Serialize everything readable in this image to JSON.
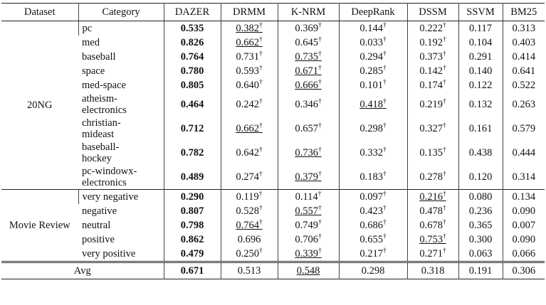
{
  "headers": [
    "Dataset",
    "Category",
    "DAZER",
    "DRMM",
    "K-NRM",
    "DeepRank",
    "DSSM",
    "SSVM",
    "BM25"
  ],
  "groups": [
    {
      "dataset": "20NG",
      "rows": [
        {
          "category": "pc",
          "lines": 1,
          "values": [
            {
              "v": "0.535",
              "b": true
            },
            {
              "v": "0.382",
              "dag": true,
              "u": true
            },
            {
              "v": "0.369",
              "dag": true
            },
            {
              "v": "0.144",
              "dag": true
            },
            {
              "v": "0.222",
              "dag": true
            },
            {
              "v": "0.117"
            },
            {
              "v": "0.313"
            }
          ]
        },
        {
          "category": "med",
          "lines": 1,
          "values": [
            {
              "v": "0.826",
              "b": true
            },
            {
              "v": "0.662",
              "dag": true,
              "u": true
            },
            {
              "v": "0.645",
              "dag": true
            },
            {
              "v": "0.033",
              "dag": true
            },
            {
              "v": "0.192",
              "dag": true
            },
            {
              "v": "0.104"
            },
            {
              "v": "0.403"
            }
          ]
        },
        {
          "category": "baseball",
          "lines": 1,
          "values": [
            {
              "v": "0.764",
              "b": true
            },
            {
              "v": "0.731",
              "dag": true
            },
            {
              "v": "0.735",
              "dag": true,
              "u": true
            },
            {
              "v": "0.294",
              "dag": true
            },
            {
              "v": "0.373",
              "dag": true
            },
            {
              "v": "0.291"
            },
            {
              "v": "0.414"
            }
          ]
        },
        {
          "category": "space",
          "lines": 1,
          "values": [
            {
              "v": "0.780",
              "b": true
            },
            {
              "v": "0.593",
              "dag": true
            },
            {
              "v": "0.671",
              "dag": true,
              "u": true
            },
            {
              "v": "0.285",
              "dag": true
            },
            {
              "v": "0.142",
              "dag": true
            },
            {
              "v": "0.140"
            },
            {
              "v": "0.641"
            }
          ]
        },
        {
          "category": "med-space",
          "lines": 1,
          "values": [
            {
              "v": "0.805",
              "b": true
            },
            {
              "v": "0.640",
              "dag": true
            },
            {
              "v": "0.666",
              "dag": true,
              "u": true
            },
            {
              "v": "0.101",
              "dag": true
            },
            {
              "v": "0.174",
              "dag": true
            },
            {
              "v": "0.122"
            },
            {
              "v": "0.522"
            }
          ]
        },
        {
          "category": "atheism-\nelectronics",
          "lines": 2,
          "values": [
            {
              "v": "0.464",
              "b": true
            },
            {
              "v": "0.242",
              "dag": true
            },
            {
              "v": "0.346",
              "dag": true
            },
            {
              "v": "0.418",
              "dag": true,
              "u": true
            },
            {
              "v": "0.219",
              "dag": true
            },
            {
              "v": "0.132"
            },
            {
              "v": "0.263"
            }
          ]
        },
        {
          "category": "christian-\nmideast",
          "lines": 2,
          "values": [
            {
              "v": "0.712",
              "b": true
            },
            {
              "v": "0.662",
              "dag": true,
              "u": true
            },
            {
              "v": "0.657",
              "dag": true
            },
            {
              "v": "0.298",
              "dag": true
            },
            {
              "v": "0.327",
              "dag": true
            },
            {
              "v": "0.161"
            },
            {
              "v": "0.579"
            }
          ]
        },
        {
          "category": "baseball-\nhockey",
          "lines": 2,
          "values": [
            {
              "v": "0.782",
              "b": true
            },
            {
              "v": "0.642",
              "dag": true
            },
            {
              "v": "0.736",
              "dag": true,
              "u": true
            },
            {
              "v": "0.332",
              "dag": true
            },
            {
              "v": "0.135",
              "dag": true
            },
            {
              "v": "0.438"
            },
            {
              "v": "0.444"
            }
          ]
        },
        {
          "category": "pc-windowx-\nelectronics",
          "lines": 2,
          "values": [
            {
              "v": "0.489",
              "b": true
            },
            {
              "v": "0.274",
              "dag": true
            },
            {
              "v": "0.379",
              "dag": true,
              "u": true
            },
            {
              "v": "0.183",
              "dag": true
            },
            {
              "v": "0.278",
              "dag": true
            },
            {
              "v": "0.120"
            },
            {
              "v": "0.314"
            }
          ]
        }
      ]
    },
    {
      "dataset": "Movie Review",
      "rows": [
        {
          "category": "very negative",
          "lines": 1,
          "values": [
            {
              "v": "0.290",
              "b": true
            },
            {
              "v": "0.119",
              "dag": true
            },
            {
              "v": "0.114",
              "dag": true
            },
            {
              "v": "0.097",
              "dag": true
            },
            {
              "v": "0.216",
              "dag": true,
              "u": true
            },
            {
              "v": "0.080"
            },
            {
              "v": "0.134"
            }
          ]
        },
        {
          "category": "negative",
          "lines": 1,
          "values": [
            {
              "v": "0.807",
              "b": true
            },
            {
              "v": "0.528",
              "dag": true
            },
            {
              "v": "0.557",
              "dag": true,
              "u": true
            },
            {
              "v": "0.423",
              "dag": true
            },
            {
              "v": "0.478",
              "dag": true
            },
            {
              "v": "0.236"
            },
            {
              "v": "0.090"
            }
          ]
        },
        {
          "category": "neutral",
          "lines": 1,
          "values": [
            {
              "v": "0.798",
              "b": true
            },
            {
              "v": "0.764",
              "dag": true,
              "u": true
            },
            {
              "v": "0.749",
              "dag": true
            },
            {
              "v": "0.686",
              "dag": true
            },
            {
              "v": "0.678",
              "dag": true
            },
            {
              "v": "0.365"
            },
            {
              "v": "0.007"
            }
          ]
        },
        {
          "category": "positive",
          "lines": 1,
          "values": [
            {
              "v": "0.862",
              "b": true
            },
            {
              "v": "0.696"
            },
            {
              "v": "0.706",
              "dag": true
            },
            {
              "v": "0.655",
              "dag": true
            },
            {
              "v": "0.753",
              "dag": true,
              "u": true
            },
            {
              "v": "0.300"
            },
            {
              "v": "0.090"
            }
          ]
        },
        {
          "category": "very positive",
          "lines": 1,
          "values": [
            {
              "v": "0.479",
              "b": true
            },
            {
              "v": "0.250",
              "dag": true
            },
            {
              "v": "0.339",
              "dag": true,
              "u": true
            },
            {
              "v": "0.217",
              "dag": true
            },
            {
              "v": "0.271",
              "dag": true
            },
            {
              "v": "0.063"
            },
            {
              "v": "0.066"
            }
          ]
        }
      ]
    }
  ],
  "avg": {
    "label": "Avg",
    "values": [
      {
        "v": "0.671",
        "b": true
      },
      {
        "v": "0.513"
      },
      {
        "v": "0.548",
        "u": true
      },
      {
        "v": "0.298"
      },
      {
        "v": "0.318"
      },
      {
        "v": "0.191"
      },
      {
        "v": "0.306"
      }
    ]
  },
  "dagger": "†"
}
